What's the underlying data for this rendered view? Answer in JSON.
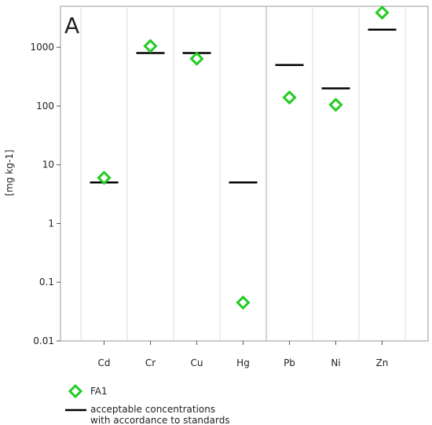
{
  "chart_data": {
    "type": "scatter",
    "panel_label": "A",
    "ylabel": "[mg kg-1]",
    "yscale": "log",
    "ylim": [
      0.01,
      5000
    ],
    "yticks": [
      0.01,
      0.1,
      1,
      10,
      100,
      1000
    ],
    "ytick_labels": [
      "0.01",
      "0.1",
      "1",
      "10",
      "100",
      "1000"
    ],
    "categories": [
      "Cd",
      "Cr",
      "Cu",
      "Hg",
      "Pb",
      "Ni",
      "Zn"
    ],
    "series": [
      {
        "name": "FA1",
        "marker": "diamond-open",
        "color": "#22cc22",
        "values": [
          6,
          1050,
          640,
          0.045,
          140,
          105,
          3900
        ]
      },
      {
        "name": "acceptable concentrations with accordance to standards",
        "marker": "hline",
        "color": "#000000",
        "values": [
          5,
          800,
          800,
          5,
          500,
          200,
          2000
        ]
      }
    ],
    "grid": "vertical separators between categories",
    "legend": {
      "position": "bottom-left",
      "items": [
        {
          "label": "FA1",
          "marker": "diamond-open",
          "color": "#22cc22"
        },
        {
          "label_lines": [
            "acceptable concentrations",
            "with accordance to standards"
          ],
          "marker": "hline",
          "color": "#000000"
        }
      ]
    }
  }
}
